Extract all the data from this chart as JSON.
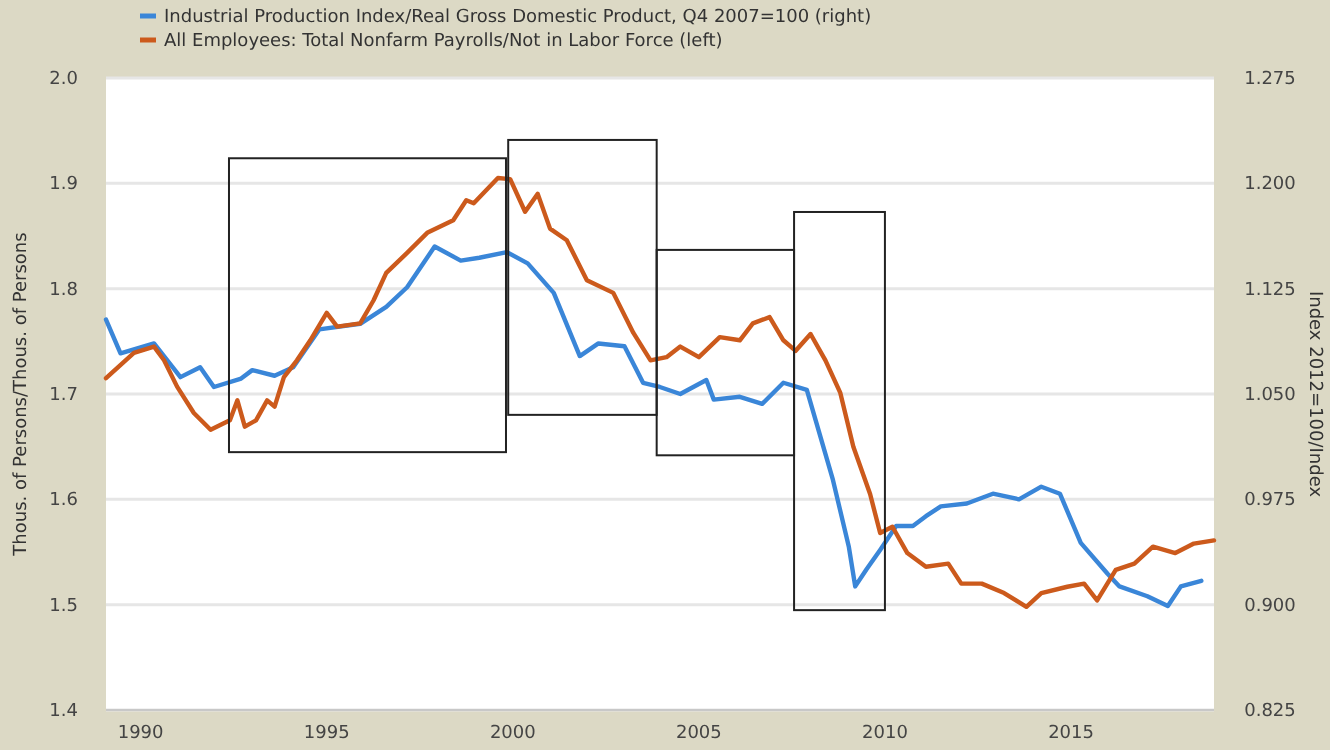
{
  "chart_data": {
    "type": "line",
    "ylabel": "Thous. of Persons/Thous. of Persons",
    "y2label": "Index 2012=100/Index",
    "legend": "top",
    "grid": "y",
    "xlim": [
      1989.07,
      2018.84
    ],
    "xticks": [
      {
        "value": 1990,
        "label": "1990"
      },
      {
        "value": 1995,
        "label": "1995"
      },
      {
        "value": 2000,
        "label": "2000"
      },
      {
        "value": 2005,
        "label": "2005"
      },
      {
        "value": 2010,
        "label": "2010"
      },
      {
        "value": 2015,
        "label": "2015"
      }
    ],
    "ylim": [
      1.4,
      2.0
    ],
    "yticks": [
      {
        "value": 1.4,
        "label": "1.4"
      },
      {
        "value": 1.5,
        "label": "1.5"
      },
      {
        "value": 1.6,
        "label": "1.6"
      },
      {
        "value": 1.7,
        "label": "1.7"
      },
      {
        "value": 1.8,
        "label": "1.8"
      },
      {
        "value": 1.9,
        "label": "1.9"
      },
      {
        "value": 2.0,
        "label": "2.0"
      }
    ],
    "y2lim": [
      0.825,
      1.275
    ],
    "y2ticks": [
      {
        "value": 0.825,
        "label": "0.825"
      },
      {
        "value": 0.9,
        "label": "0.900"
      },
      {
        "value": 0.975,
        "label": "0.975"
      },
      {
        "value": 1.05,
        "label": "1.050"
      },
      {
        "value": 1.125,
        "label": "1.125"
      },
      {
        "value": 1.2,
        "label": "1.200"
      },
      {
        "value": 1.275,
        "label": "1.275"
      }
    ],
    "series": [
      {
        "name": "Industrial Production Index/Real Gross Domestic Product, Q4 2007=100 (right)",
        "color": "#3a86d8",
        "axis": "y2",
        "x": [
          1989.07,
          1989.46,
          1990.36,
          1991.07,
          1991.6,
          1991.97,
          1992.7,
          1993.0,
          1993.6,
          1994.1,
          1994.8,
          1995.9,
          1996.6,
          1997.16,
          1997.9,
          1998.6,
          1999.1,
          1999.84,
          2000.4,
          2001.1,
          2001.8,
          2002.3,
          2003.0,
          2003.5,
          2003.95,
          2004.5,
          2005.2,
          2005.4,
          2006.1,
          2006.7,
          2007.27,
          2007.9,
          2008.14,
          2008.6,
          2009.03,
          2009.2,
          2009.5,
          2009.87,
          2010.3,
          2010.75,
          2011.1,
          2011.5,
          2012.2,
          2012.9,
          2013.6,
          2014.2,
          2014.7,
          2015.26,
          2015.98,
          2016.3,
          2017.05,
          2017.6,
          2017.95,
          2018.5
        ],
        "values": [
          1.103,
          1.079,
          1.086,
          1.062,
          1.069,
          1.055,
          1.061,
          1.067,
          1.063,
          1.069,
          1.096,
          1.1,
          1.112,
          1.126,
          1.155,
          1.145,
          1.147,
          1.151,
          1.143,
          1.122,
          1.077,
          1.086,
          1.084,
          1.058,
          1.055,
          1.05,
          1.06,
          1.046,
          1.048,
          1.043,
          1.058,
          1.053,
          1.031,
          0.989,
          0.941,
          0.913,
          0.925,
          0.939,
          0.956,
          0.956,
          0.963,
          0.97,
          0.972,
          0.979,
          0.975,
          0.984,
          0.979,
          0.944,
          0.922,
          0.913,
          0.906,
          0.899,
          0.913,
          0.917
        ]
      },
      {
        "name": "All Employees: Total Nonfarm Payrolls/Not in Labor Force (left)",
        "color": "#cc5a1c",
        "x": [
          1989.07,
          1989.82,
          1990.36,
          1990.63,
          1990.98,
          1991.43,
          1991.88,
          1992.4,
          1992.6,
          1992.8,
          1993.1,
          1993.4,
          1993.6,
          1993.85,
          1994.2,
          1994.56,
          1995.0,
          1995.28,
          1995.9,
          1996.26,
          1996.6,
          1997.16,
          1997.7,
          1998.4,
          1998.75,
          1998.95,
          1999.6,
          1999.93,
          2000.33,
          2000.67,
          2001.0,
          2001.45,
          2001.99,
          2002.7,
          2003.24,
          2003.7,
          2004.13,
          2004.5,
          2005.0,
          2005.56,
          2006.1,
          2006.45,
          2006.9,
          2007.27,
          2007.6,
          2008.0,
          2008.4,
          2008.8,
          2009.15,
          2009.6,
          2009.87,
          2010.2,
          2010.6,
          2011.1,
          2011.7,
          2012.05,
          2012.6,
          2013.2,
          2013.8,
          2014.2,
          2014.9,
          2015.35,
          2015.7,
          2016.2,
          2016.7,
          2017.2,
          2017.8,
          2018.3,
          2018.84
        ],
        "values": [
          1.715,
          1.739,
          1.745,
          1.732,
          1.707,
          1.682,
          1.666,
          1.675,
          1.694,
          1.669,
          1.675,
          1.694,
          1.688,
          1.716,
          1.732,
          1.751,
          1.777,
          1.764,
          1.767,
          1.789,
          1.815,
          1.834,
          1.853,
          1.865,
          1.884,
          1.881,
          1.905,
          1.904,
          1.873,
          1.89,
          1.857,
          1.846,
          1.808,
          1.796,
          1.758,
          1.732,
          1.735,
          1.745,
          1.735,
          1.754,
          1.751,
          1.767,
          1.773,
          1.751,
          1.741,
          1.757,
          1.732,
          1.701,
          1.65,
          1.605,
          1.568,
          1.574,
          1.549,
          1.536,
          1.539,
          1.52,
          1.52,
          1.511,
          1.498,
          1.511,
          1.517,
          1.52,
          1.504,
          1.533,
          1.539,
          1.555,
          1.549,
          1.558,
          1.561
        ]
      }
    ]
  }
}
